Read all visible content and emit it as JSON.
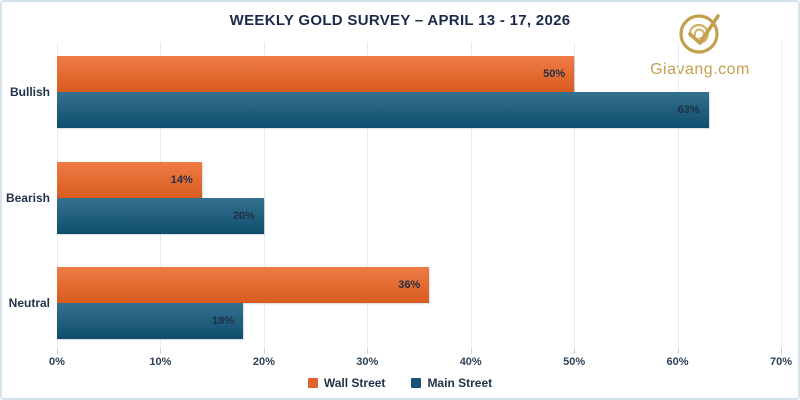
{
  "header": {
    "title": "WEEKLY GOLD SURVEY – APRIL 13 - 17, 2026",
    "title_color": "#1b2b4a"
  },
  "logo": {
    "text": "Giavang.com",
    "color": "#c3a04c",
    "icon": "giavang-circle-check-icon"
  },
  "chart_data": {
    "type": "bar",
    "orientation": "horizontal",
    "title": "WEEKLY GOLD SURVEY – APRIL 13 - 17, 2026",
    "categories": [
      "Bullish",
      "Bearish",
      "Neutral"
    ],
    "series": [
      {
        "name": "Wall Street",
        "values": [
          50,
          14,
          36
        ],
        "color": "#e2622b",
        "gradient_top": "#ee7c46",
        "gradient_bottom": "#d95b1f"
      },
      {
        "name": "Main Street",
        "values": [
          63,
          20,
          18
        ],
        "color": "#1a5276",
        "gradient_top": "#35708f",
        "gradient_bottom": "#0f4e6e"
      }
    ],
    "data_labels": [
      [
        "50%",
        "14%",
        "36%"
      ],
      [
        "63%",
        "20%",
        "18%"
      ]
    ],
    "xlim": [
      0,
      70
    ],
    "x_ticks": [
      "0%",
      "10%",
      "20%",
      "30%",
      "40%",
      "50%",
      "60%",
      "70%"
    ],
    "grid": true,
    "gridline_color": "#e4edf3",
    "legend_position": "bottom"
  }
}
